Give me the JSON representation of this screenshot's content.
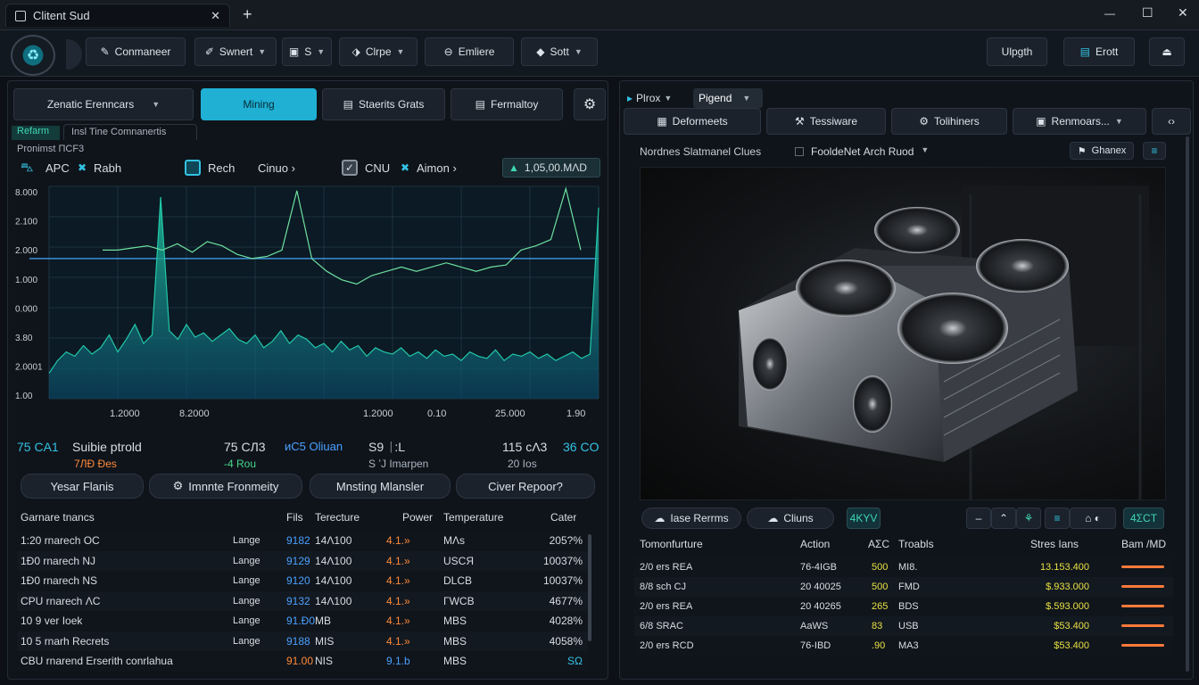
{
  "window": {
    "title": "Clitent Sud",
    "tab_icon": "window-icon",
    "close": "✕",
    "add": "+",
    "minimize": "—",
    "maximize": "☐",
    "close_win": "✕"
  },
  "toolbar": {
    "items": [
      {
        "label": "Conmaneer",
        "icon": "pencil-icon"
      },
      {
        "label": "Swnert",
        "icon": "wand-icon"
      },
      {
        "label": "S",
        "icon": "doc-icon"
      },
      {
        "label": "Clrpe",
        "icon": "tag-icon"
      },
      {
        "label": "Emliere",
        "icon": "link-icon"
      },
      {
        "label": "Sott",
        "icon": "diamond-icon"
      }
    ],
    "upgrade": "Ulpgth",
    "exit": "Erott"
  },
  "left": {
    "tabs": [
      {
        "label": "Zenatic Erenncars"
      },
      {
        "label": "Mining"
      },
      {
        "label": "Staerits Grats"
      },
      {
        "label": "Fermaltoy"
      }
    ],
    "subtabs": [
      "Refarm",
      "Insl Tine Comnanertis"
    ],
    "chart_caption": "Pronimst ΠCF3",
    "legend": [
      {
        "label": "APC",
        "icon": "car-icon"
      },
      {
        "label": "Rabh",
        "icon": "x-icon"
      },
      {
        "label": "Rech",
        "icon": "square-icon"
      },
      {
        "label": "Cinuo"
      },
      {
        "label": "CNU",
        "icon": "check-icon"
      },
      {
        "label": "Aimon",
        "icon": "x-icon"
      }
    ],
    "price": "1,05,00.MΛD",
    "stats": [
      {
        "a": "75 CA1",
        "b": "Suibie ptrold",
        "c": "7ЛÐ Ðes"
      },
      {
        "a": "75 CЛ3",
        "c": "-4 Rou"
      },
      {
        "a": "ᴎC5 Oliuan"
      },
      {
        "a": "S9 ᛁ:L",
        "c": "S ʼJ Imarpen"
      },
      {
        "a": "115 ᴄΛ3",
        "c": "20 Ios"
      },
      {
        "a": "36 CO"
      }
    ],
    "actions": [
      "Yesar Flanis",
      "Imnnte Fronmeity",
      "Mnsting Mlansler",
      "Civer Repoor?"
    ],
    "table": {
      "headers": [
        "Garnare tnancs",
        "Fils",
        "Terecture",
        "Power",
        "Temperature",
        "Cater"
      ],
      "rows": [
        [
          "1:20 rnarech OC",
          "Lange",
          "9182",
          "14Λ100",
          "4.1.»",
          "MΛs",
          "205?%"
        ],
        [
          "1Ð0 rnarech NJ",
          "Lange",
          "9129",
          "14Λ100",
          "4.1.»",
          "USCЯ",
          "10037%"
        ],
        [
          "1Ð0 rnarech NS",
          "Lange",
          "9120",
          "14Λ100",
          "4.1.»",
          "DLCB",
          "10037%"
        ],
        [
          "CPU rnarech ΛC",
          "Lange",
          "9132",
          "14Λ100",
          "4.1.»",
          "ΓWCB",
          "4677%"
        ],
        [
          "10 9 ver Ioek",
          "Lange",
          "91.Ð0",
          "MB",
          "4.1.»",
          "MBS",
          "4028%"
        ],
        [
          "10 5 rnarh Recrets",
          "Lange",
          "9188",
          "MIS",
          "4.1.»",
          "MBS",
          "4058%"
        ],
        [
          "CBU rnarend Erserith conrlahua",
          "",
          "91.00",
          "NIS",
          "9.1.b",
          "MBS",
          "SΩ"
        ]
      ]
    }
  },
  "chart_data": {
    "type": "line",
    "title": "",
    "ylabels": [
      "8.000",
      "2.100",
      "2.000",
      "1.000",
      "0.000",
      "3.80",
      "2.0001",
      "1.00"
    ],
    "xlabels": [
      "1.2000",
      "8.2000",
      "1.2000",
      "0.10",
      "25.000",
      "1.90"
    ],
    "series": [
      {
        "name": "APC",
        "color": "#22c7a9",
        "values": [
          0.12,
          0.18,
          0.22,
          0.2,
          0.25,
          0.21,
          0.24,
          0.3,
          0.22,
          0.28,
          0.35,
          0.26,
          0.3,
          0.95,
          0.32,
          0.28,
          0.35,
          0.29,
          0.31,
          0.27,
          0.3,
          0.33,
          0.28,
          0.26,
          0.3,
          0.24,
          0.27,
          0.32,
          0.26,
          0.3,
          0.28,
          0.24,
          0.26,
          0.22,
          0.27,
          0.23,
          0.25,
          0.2,
          0.24,
          0.22,
          0.21,
          0.24,
          0.2,
          0.22,
          0.19,
          0.23,
          0.2,
          0.21,
          0.18,
          0.22,
          0.2,
          0.19,
          0.23,
          0.18,
          0.21,
          0.2,
          0.22,
          0.19,
          0.21,
          0.18,
          0.2,
          0.22,
          0.19,
          0.21,
          0.9
        ]
      },
      {
        "name": "Rabh",
        "color": "#6ee0a0",
        "values": [
          0.7,
          0.7,
          0.71,
          0.72,
          0.7,
          0.73,
          0.69,
          0.74,
          0.72,
          0.68,
          0.66,
          0.67,
          0.7,
          0.98,
          0.66,
          0.6,
          0.56,
          0.54,
          0.58,
          0.6,
          0.62,
          0.6,
          0.62,
          0.64,
          0.62,
          0.6,
          0.62,
          0.63,
          0.7,
          0.72,
          0.75,
          0.99,
          0.7
        ]
      }
    ],
    "threshold": 2.0
  },
  "right": {
    "top_tabs": [
      {
        "label": "Plrox",
        "icon": "chip-icon"
      },
      {
        "label": "Pigend"
      }
    ],
    "tabs": [
      {
        "label": "Deformeets",
        "icon": "chip-icon"
      },
      {
        "label": "Tessiware",
        "icon": "wrench-icon"
      },
      {
        "label": "Tolihiners",
        "icon": "gear-icon"
      },
      {
        "label": "Renmoars...",
        "icon": "doc-icon"
      }
    ],
    "viewer_label": "Nordnes Slatmanel Clues",
    "viewer_source": "FooldeNet Αrch Ruod",
    "change_btn": "Ghanex",
    "below_btns": [
      "Iase Rerrms",
      "Cliuns"
    ],
    "badge": "4KYV",
    "badge2": "4ΣCT",
    "table": {
      "headers": [
        "Tomonfurture",
        "Action",
        "AΣC",
        "Troabls",
        "Stres Ians",
        "Bam /MD"
      ],
      "rows": [
        [
          "2/0 ers REA",
          "76-4IGB",
          "500",
          "MI8.",
          "13.153.400"
        ],
        [
          "8/8 sch CJ",
          "20 40025",
          "500",
          "FMD",
          "$.933.000"
        ],
        [
          "2/0 ers REA",
          "20 40265",
          "265",
          "BDS",
          "$.593.000"
        ],
        [
          "6/8 SRAC",
          "ΑaWS",
          "83",
          "USB",
          "$53.400"
        ],
        [
          "2/0 ers RCD",
          "76-IBD",
          ".90",
          "MA3",
          "$53.400"
        ]
      ]
    }
  },
  "colors": {
    "accent": "#1ab3d6",
    "green": "#47d58a",
    "orange": "#ff8a3a",
    "yellow": "#e8e043"
  }
}
